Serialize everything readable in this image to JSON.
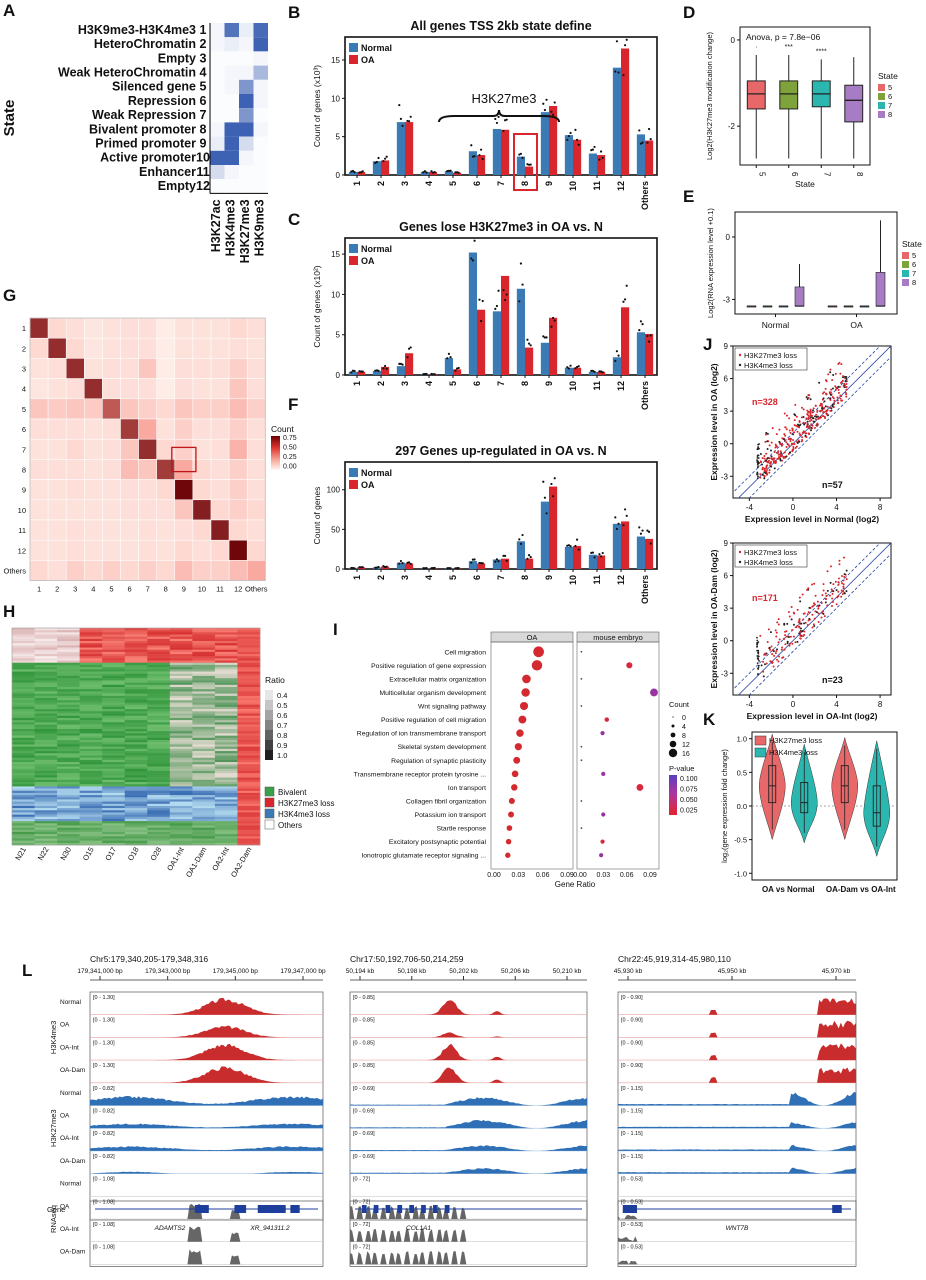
{
  "colors": {
    "normal": "#3b7bb5",
    "oa": "#d8262c",
    "bivalent": "#3aa04a",
    "k27loss": "#d8262c",
    "k4loss": "#3b7bb5",
    "s5": "#e8686a",
    "s6": "#7ea33a",
    "s7": "#2bb7b0",
    "s8": "#a77cc4",
    "igvRed": "#c82c2c",
    "igvBlue": "#2f6fb5",
    "igvGray": "#666666"
  },
  "panels": {
    "A": {
      "letter": "A",
      "ylabel": "State",
      "states": [
        "H3K9me3-H3K4me3",
        "HeteroChromatin",
        "Empty",
        "Weak HeteroChromatin",
        "Silenced gene",
        "Repression",
        "Weak Repression",
        "Bivalent promoter",
        "Primed promoter",
        "Active promoter",
        "Enhancer",
        "Empty"
      ],
      "numbers": [
        "1",
        "2",
        "3",
        "4",
        "5",
        "6",
        "7",
        "8",
        "9",
        "10",
        "11",
        "12"
      ],
      "marks": [
        "H3K27ac",
        "H3K4me3",
        "H3K27me3",
        "H3K9me3"
      ],
      "matrix": [
        [
          0.05,
          0.8,
          0.1,
          0.85
        ],
        [
          0.05,
          0.1,
          0.05,
          0.9
        ],
        [
          0.02,
          0.02,
          0.02,
          0.05
        ],
        [
          0.02,
          0.05,
          0.05,
          0.4
        ],
        [
          0.02,
          0.05,
          0.6,
          0.05
        ],
        [
          0.02,
          0.02,
          0.9,
          0.05
        ],
        [
          0.02,
          0.02,
          0.6,
          0.02
        ],
        [
          0.05,
          0.9,
          0.9,
          0.05
        ],
        [
          0.1,
          0.9,
          0.2,
          0.02
        ],
        [
          0.9,
          0.9,
          0.05,
          0.02
        ],
        [
          0.2,
          0.05,
          0.02,
          0.02
        ],
        [
          0.02,
          0.02,
          0.02,
          0.02
        ]
      ]
    },
    "B": {
      "letter": "B"
    },
    "C": {
      "letter": "C"
    },
    "D": {
      "letter": "D"
    },
    "E": {
      "letter": "E"
    },
    "F": {
      "letter": "F"
    },
    "G": {
      "letter": "G",
      "legendTitle": "Count",
      "legendTicks": [
        "0.75",
        "0.50",
        "0.25",
        "0.00"
      ],
      "labels": [
        "1",
        "2",
        "3",
        "4",
        "5",
        "6",
        "7",
        "8",
        "9",
        "10",
        "11",
        "12",
        "Others"
      ]
    },
    "H": {
      "letter": "H",
      "ratioTitle": "Ratio",
      "ratioTicks": [
        "0.4",
        "0.5",
        "0.6",
        "0.7",
        "0.8",
        "0.9",
        "1.0"
      ],
      "cats": [
        "Bivalent",
        "H3K27me3 loss",
        "H3K4me3 loss",
        "Others"
      ],
      "samples": [
        "N21",
        "N22",
        "N30",
        "O15",
        "O17",
        "O18",
        "O28",
        "OA1-Int",
        "OA1-Dam",
        "OA2-Int",
        "OA2-Dam"
      ]
    },
    "I": {
      "letter": "I",
      "xlabel": "Gene Ratio",
      "facets": [
        "OA",
        "mouse embryo"
      ],
      "ticksOA": [
        "0.00",
        "0.03",
        "0.06",
        "0.09"
      ],
      "ticksME": [
        "0.00",
        "0.03",
        "0.06",
        "0.09"
      ],
      "terms": [
        "Cell migration",
        "Positive regulation of gene expression",
        "Extracellular matrix organization",
        "Multicellular organism development",
        "Wnt signaling pathway",
        "Positive regulation of cell migration",
        "Regulation of ion transmembrane transport",
        "Skeletal system development",
        "Regulation of synaptic plasticity",
        "Transmembrane receptor protein tyrosine ...",
        "Ion transport",
        "Collagen fibril organization",
        "Potassium ion transport",
        "Startle response",
        "Excitatory postsynaptic potential",
        "Ionotropic glutamate receptor signaling ..."
      ],
      "oa": [
        0.055,
        0.053,
        0.04,
        0.039,
        0.037,
        0.035,
        0.032,
        0.03,
        0.028,
        0.026,
        0.025,
        0.022,
        0.021,
        0.019,
        0.018,
        0.017
      ],
      "me": [
        0.002,
        0.07,
        0.002,
        0.105,
        0.002,
        0.038,
        0.032,
        0.002,
        0.002,
        0.033,
        0.085,
        0.002,
        0.033,
        0.002,
        0.032,
        0.03
      ],
      "countTitle": "Count",
      "countLabels": [
        "0",
        "4",
        "8",
        "12",
        "16"
      ],
      "pTitle": "P-value",
      "pLabels": [
        "0.100",
        "0.075",
        "0.050",
        "0.025"
      ]
    },
    "J": {
      "letter": "J"
    },
    "K": {
      "letter": "K"
    },
    "L": {
      "letter": "L"
    }
  },
  "chart_data": [
    {
      "panel": "B",
      "type": "bar",
      "title": "All genes TSS 2kb state define",
      "ylabel": "Count of genes (x10³)",
      "categories": [
        "1",
        "2",
        "3",
        "4",
        "5",
        "6",
        "7",
        "8",
        "9",
        "10",
        "11",
        "12",
        "Others"
      ],
      "ylim": [
        0,
        18
      ],
      "yticks": [
        0,
        5,
        10,
        15
      ],
      "series": [
        {
          "name": "Normal",
          "values": [
            0.4,
            1.8,
            6.9,
            0.4,
            0.5,
            3.1,
            6.0,
            2.4,
            8.2,
            5.2,
            2.8,
            14.0,
            5.3
          ]
        },
        {
          "name": "OA",
          "values": [
            0.4,
            1.9,
            6.9,
            0.4,
            0.3,
            2.6,
            5.9,
            1.1,
            9.0,
            4.6,
            2.6,
            16.5,
            4.5
          ]
        }
      ],
      "annotation": "H3K27me3",
      "highlight": "8"
    },
    {
      "panel": "C",
      "type": "bar",
      "title": "Genes lose H3K27me3 in OA vs. N",
      "ylabel": "Count of genes (x10²)",
      "categories": [
        "1",
        "2",
        "3",
        "4",
        "5",
        "6",
        "7",
        "8",
        "9",
        "10",
        "11",
        "12",
        "Others"
      ],
      "ylim": [
        0,
        17
      ],
      "yticks": [
        0,
        5,
        10,
        15
      ],
      "series": [
        {
          "name": "Normal",
          "values": [
            0.4,
            0.5,
            1.1,
            0.1,
            2.1,
            15.2,
            7.9,
            10.7,
            4.0,
            0.9,
            0.4,
            2.2,
            5.3
          ]
        },
        {
          "name": "OA",
          "values": [
            0.4,
            1.0,
            2.7,
            0.1,
            0.7,
            8.1,
            12.3,
            3.4,
            7.1,
            0.9,
            0.4,
            8.4,
            5.1
          ]
        }
      ]
    },
    {
      "panel": "F",
      "type": "bar",
      "title": "297 Genes up-regulated in OA vs. N",
      "ylabel": "Count of genes",
      "categories": [
        "1",
        "2",
        "3",
        "4",
        "5",
        "6",
        "7",
        "8",
        "9",
        "10",
        "11",
        "12",
        "Others"
      ],
      "ylim": [
        0,
        135
      ],
      "yticks": [
        0,
        50,
        100
      ],
      "series": [
        {
          "name": "Normal",
          "values": [
            1,
            2,
            8,
            1,
            1,
            10,
            12,
            35,
            85,
            28,
            18,
            57,
            41
          ]
        },
        {
          "name": "OA",
          "values": [
            2,
            3,
            7,
            1,
            1,
            7,
            13,
            13,
            104,
            29,
            17,
            60,
            38
          ]
        }
      ]
    },
    {
      "panel": "D",
      "type": "box",
      "ylabel": "Log2(H3K27me3 modification change)",
      "xlabel": "State",
      "annotation": "Anova, p = 7.8e−06",
      "categories": [
        "5",
        "6",
        "7",
        "8"
      ],
      "ylim": [
        -2.9,
        0.3
      ],
      "yticks": [
        0,
        -2
      ],
      "ytickLabels": [
        "0",
        "-2"
      ],
      "legendTitle": "State",
      "sig": [
        "·",
        "***",
        "****",
        ""
      ],
      "boxes": [
        {
          "q1": -1.6,
          "med": -1.25,
          "q3": -0.95,
          "lo": -2.75,
          "hi": -0.35
        },
        {
          "q1": -1.6,
          "med": -1.25,
          "q3": -0.95,
          "lo": -2.75,
          "hi": -0.35
        },
        {
          "q1": -1.55,
          "med": -1.25,
          "q3": -0.95,
          "lo": -2.75,
          "hi": -0.45
        },
        {
          "q1": -1.9,
          "med": -1.4,
          "q3": -1.05,
          "lo": -2.75,
          "hi": -0.4
        }
      ]
    },
    {
      "panel": "E",
      "type": "box",
      "ylabel": "Log2(RNA expression level +0.1)",
      "xlabel": "",
      "groups": [
        "Normal",
        "OA"
      ],
      "ylim": [
        -3.7,
        1.2
      ],
      "yticks": [
        0,
        -3
      ],
      "ytickLabels": [
        "0",
        "-3"
      ],
      "legendTitle": "State",
      "legendEntries": [
        "5",
        "6",
        "7",
        "8"
      ],
      "boxes": [
        {
          "group": "Normal",
          "state": "5",
          "q1": -3.32,
          "med": -3.32,
          "q3": -3.32,
          "lo": -3.32,
          "hi": -3.32
        },
        {
          "group": "Normal",
          "state": "6",
          "q1": -3.32,
          "med": -3.32,
          "q3": -3.32,
          "lo": -3.32,
          "hi": -3.32
        },
        {
          "group": "Normal",
          "state": "7",
          "q1": -3.32,
          "med": -3.32,
          "q3": -3.32,
          "lo": -3.32,
          "hi": -3.32
        },
        {
          "group": "Normal",
          "state": "8",
          "q1": -3.32,
          "med": -3.32,
          "q3": -2.4,
          "lo": -3.32,
          "hi": -1.3
        },
        {
          "group": "OA",
          "state": "5",
          "q1": -3.32,
          "med": -3.32,
          "q3": -3.32,
          "lo": -3.32,
          "hi": -3.32
        },
        {
          "group": "OA",
          "state": "6",
          "q1": -3.32,
          "med": -3.32,
          "q3": -3.32,
          "lo": -3.32,
          "hi": -3.32
        },
        {
          "group": "OA",
          "state": "7",
          "q1": -3.32,
          "med": -3.32,
          "q3": -3.32,
          "lo": -3.32,
          "hi": -3.32
        },
        {
          "group": "OA",
          "state": "8",
          "q1": -3.32,
          "med": -3.32,
          "q3": -1.7,
          "lo": -3.32,
          "hi": 0.8
        }
      ]
    },
    {
      "panel": "G",
      "type": "heatmap",
      "categories": [
        "1",
        "2",
        "3",
        "4",
        "5",
        "6",
        "7",
        "8",
        "9",
        "10",
        "11",
        "12",
        "Others"
      ],
      "matrix": [
        [
          0.85,
          0.15,
          0.12,
          0.08,
          0.1,
          0.12,
          0.12,
          0.05,
          0.1,
          0.1,
          0.1,
          0.15,
          0.12
        ],
        [
          0.15,
          0.85,
          0.15,
          0.08,
          0.1,
          0.12,
          0.12,
          0.05,
          0.1,
          0.1,
          0.1,
          0.12,
          0.1
        ],
        [
          0.1,
          0.12,
          0.85,
          0.1,
          0.12,
          0.12,
          0.25,
          0.05,
          0.12,
          0.12,
          0.12,
          0.2,
          0.12
        ],
        [
          0.08,
          0.1,
          0.12,
          0.85,
          0.12,
          0.12,
          0.12,
          0.05,
          0.12,
          0.1,
          0.1,
          0.25,
          0.12
        ],
        [
          0.25,
          0.22,
          0.25,
          0.22,
          0.7,
          0.25,
          0.2,
          0.15,
          0.25,
          0.2,
          0.2,
          0.3,
          0.2
        ],
        [
          0.12,
          0.12,
          0.12,
          0.1,
          0.12,
          0.8,
          0.4,
          0.1,
          0.2,
          0.12,
          0.12,
          0.2,
          0.12
        ],
        [
          0.1,
          0.1,
          0.15,
          0.1,
          0.12,
          0.25,
          0.85,
          0.15,
          0.2,
          0.1,
          0.12,
          0.35,
          0.12
        ],
        [
          0.12,
          0.12,
          0.12,
          0.1,
          0.12,
          0.3,
          0.25,
          0.8,
          0.4,
          0.15,
          0.12,
          0.2,
          0.12
        ],
        [
          0.1,
          0.1,
          0.12,
          0.1,
          0.1,
          0.12,
          0.12,
          0.15,
          0.98,
          0.15,
          0.12,
          0.2,
          0.12
        ],
        [
          0.1,
          0.1,
          0.1,
          0.1,
          0.1,
          0.12,
          0.12,
          0.12,
          0.25,
          0.9,
          0.15,
          0.2,
          0.15
        ],
        [
          0.1,
          0.1,
          0.12,
          0.1,
          0.1,
          0.1,
          0.12,
          0.1,
          0.12,
          0.15,
          0.9,
          0.15,
          0.12
        ],
        [
          0.1,
          0.1,
          0.12,
          0.1,
          0.1,
          0.1,
          0.12,
          0.1,
          0.15,
          0.12,
          0.15,
          0.98,
          0.15
        ],
        [
          0.15,
          0.12,
          0.2,
          0.15,
          0.2,
          0.15,
          0.2,
          0.15,
          0.3,
          0.2,
          0.2,
          0.3,
          0.4
        ]
      ],
      "highlight": [
        "8",
        "9"
      ]
    },
    {
      "panel": "J1",
      "type": "scatter",
      "xlabel": "Expression level in Normal (log2)",
      "ylabel": "Expression level in OA (log2)",
      "xlim": [
        -5.5,
        9
      ],
      "ylim": [
        -5,
        9
      ],
      "xticks": [
        -4,
        0,
        4,
        8
      ],
      "yticks": [
        -3,
        0,
        3,
        6,
        9
      ],
      "legend": [
        "H3K27me3 loss",
        "H3K4me3 loss"
      ],
      "nUp": "n=328",
      "nDown": "n=57"
    },
    {
      "panel": "J2",
      "type": "scatter",
      "xlabel": "Expression level in OA-Int (log2)",
      "ylabel": "Expression level in OA-Dam (log2)",
      "xlim": [
        -5.5,
        9
      ],
      "ylim": [
        -5,
        9
      ],
      "xticks": [
        -4,
        0,
        4,
        8
      ],
      "yticks": [
        -3,
        0,
        3,
        6,
        9
      ],
      "legend": [
        "H3K27me3 loss",
        "H3K4me3 loss"
      ],
      "nUp": "n=171",
      "nDown": "n=23"
    },
    {
      "panel": "K",
      "type": "violin",
      "ylabel": "log₂(gene expression fold change)",
      "groups": [
        "OA vs Normal",
        "OA-Dam vs OA-Int"
      ],
      "legend": [
        "H3K27me3 loss",
        "H3K4me3 loss"
      ],
      "ylim": [
        -1.1,
        1.1
      ],
      "yticks": [
        1.0,
        0.5,
        0.0,
        -0.5,
        -1.0
      ],
      "ytickLabels": [
        "1.0",
        "0.5",
        "0.0",
        "-0.5",
        "-1.0"
      ],
      "violins": [
        {
          "group": "OA vs Normal",
          "series": "H3K27me3 loss",
          "med": 0.3,
          "q1": 0.05,
          "q3": 0.6,
          "lo": -0.35,
          "hi": 0.95
        },
        {
          "group": "OA vs Normal",
          "series": "H3K4me3 loss",
          "med": 0.05,
          "q1": -0.1,
          "q3": 0.35,
          "lo": -0.4,
          "hi": 0.8
        },
        {
          "group": "OA-Dam vs OA-Int",
          "series": "H3K27me3 loss",
          "med": 0.3,
          "q1": 0.05,
          "q3": 0.6,
          "lo": -0.35,
          "hi": 0.9
        },
        {
          "group": "OA-Dam vs OA-Int",
          "series": "H3K4me3 loss",
          "med": -0.1,
          "q1": -0.3,
          "q3": 0.3,
          "lo": -0.6,
          "hi": 0.85
        }
      ]
    }
  ],
  "igv": {
    "rowLabels": [
      "Normal",
      "OA",
      "OA-Int",
      "OA-Dam"
    ],
    "groups": [
      "H3K4me3",
      "H3K27me3",
      "RNAseq"
    ],
    "geneRowLabel": "Gene",
    "loci": [
      {
        "title": "Chr5:179,340,205-179,348,316",
        "ticks": [
          "179,341,000 bp",
          "179,343,000 bp",
          "179,345,000 bp",
          "179,347,000 bp"
        ],
        "k4": "[0 - 1.30]",
        "k27": "[0 - 0.82]",
        "rna": "[0 - 1.08]",
        "genes": [
          "ADAMTS2",
          "XR_941311.2"
        ]
      },
      {
        "title": "Chr17:50,192,706-50,214,259",
        "ticks": [
          "50,194 kb",
          "50,198 kb",
          "50,202 kb",
          "50,206 kb",
          "50,210 kb"
        ],
        "k4": "[0 - 0.85]",
        "k27": "[0 - 0.69]",
        "rna": "[0 - 72]",
        "genes": [
          "COL1A1"
        ]
      },
      {
        "title": "Chr22:45,919,314-45,980,110",
        "ticks": [
          "45,930 kb",
          "45,950 kb",
          "45,970 kb"
        ],
        "k4": "[0 - 0.90]",
        "k27": "[0 - 1.15]",
        "rna": "[0 - 0.53]",
        "genes": [
          "WNT7B"
        ]
      }
    ]
  }
}
